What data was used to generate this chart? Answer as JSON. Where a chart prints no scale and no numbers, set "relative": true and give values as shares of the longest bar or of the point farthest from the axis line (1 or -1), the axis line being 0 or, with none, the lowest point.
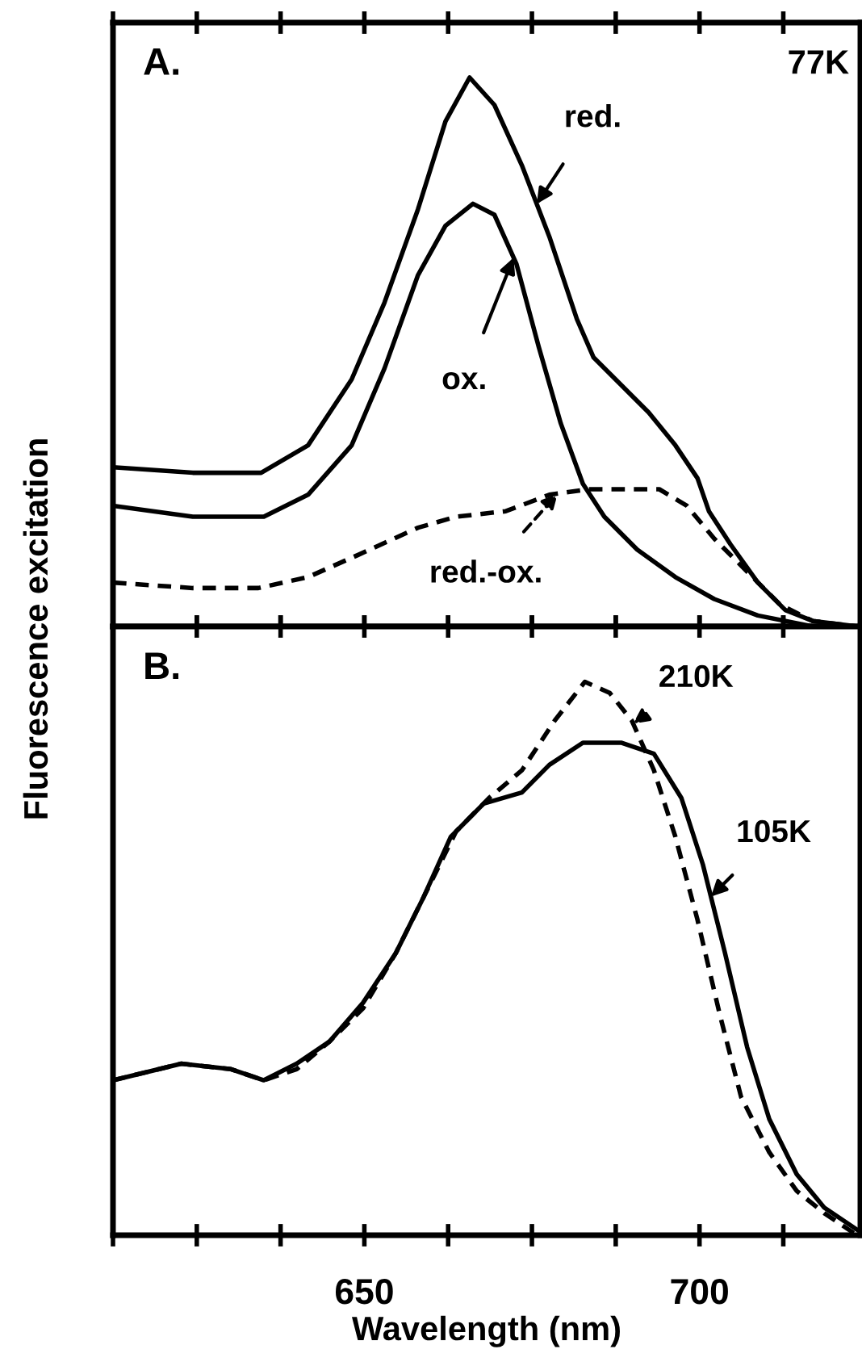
{
  "chart_data": [
    {
      "type": "line",
      "relative": true,
      "ylabel": "Fluorescence excitation",
      "tick_labels": false,
      "xlim": [
        612.5,
        724
      ],
      "xticks": [
        {
          "value": 612.5,
          "label": null
        },
        {
          "value": 625,
          "label": null
        },
        {
          "value": 637.5,
          "label": null
        },
        650,
        {
          "value": 662.5,
          "label": null
        },
        {
          "value": 675,
          "label": null
        },
        {
          "value": 687.5,
          "label": null
        },
        700,
        {
          "value": 712.5,
          "label": null
        }
      ],
      "series": [
        {
          "name": "red.",
          "color": "#000000",
          "line_style": "solid",
          "x": [
            612.5,
            624.4,
            634.6,
            641.6,
            648.1,
            653.0,
            658.0,
            662.1,
            665.7,
            669.4,
            673.5,
            677.6,
            681.7,
            684.2,
            688.3,
            692.4,
            696.4,
            699.7,
            701.4,
            704.6,
            708.7,
            712.8,
            716.9,
            723.5
          ],
          "values": [
            0.29,
            0.28,
            0.28,
            0.33,
            0.45,
            0.59,
            0.76,
            0.92,
            1.0,
            0.95,
            0.84,
            0.71,
            0.56,
            0.49,
            0.44,
            0.39,
            0.33,
            0.27,
            0.21,
            0.15,
            0.08,
            0.03,
            0.01,
            0
          ]
        },
        {
          "name": "ox.",
          "color": "#000000",
          "line_style": "solid",
          "x": [
            612.5,
            624.4,
            635.0,
            641.6,
            648.1,
            653.0,
            658.0,
            662.1,
            666.2,
            669.4,
            672.7,
            676.0,
            679.3,
            682.6,
            685.8,
            690.7,
            696.4,
            702.2,
            708.7,
            716.9,
            723.5
          ],
          "values": [
            0.22,
            0.2,
            0.2,
            0.24,
            0.33,
            0.47,
            0.64,
            0.73,
            0.77,
            0.75,
            0.66,
            0.51,
            0.37,
            0.26,
            0.2,
            0.14,
            0.09,
            0.05,
            0.02,
            0.0,
            0
          ]
        },
        {
          "name": "red.-ox.",
          "color": "#000000",
          "line_style": "dashed",
          "x": [
            612.5,
            624.4,
            634.2,
            641.6,
            649.0,
            658.0,
            663.7,
            671.1,
            677.6,
            683.4,
            689.1,
            694.0,
            698.1,
            702.2,
            707.1,
            712.0,
            716.9,
            723.5
          ],
          "values": [
            0.08,
            0.07,
            0.07,
            0.09,
            0.13,
            0.18,
            0.2,
            0.21,
            0.24,
            0.25,
            0.25,
            0.25,
            0.22,
            0.16,
            0.1,
            0.04,
            0.01,
            0
          ]
        }
      ],
      "annotations": [
        "A.",
        "77K"
      ]
    },
    {
      "type": "line",
      "relative": true,
      "xlabel": "Wavelength (nm)",
      "tick_labels": "x",
      "xlim": [
        612.5,
        724
      ],
      "xticks": [
        {
          "value": 612.5,
          "label": null
        },
        {
          "value": 625,
          "label": null
        },
        {
          "value": 637.5,
          "label": null
        },
        650,
        {
          "value": 662.5,
          "label": null
        },
        {
          "value": 675,
          "label": null
        },
        {
          "value": 687.5,
          "label": null
        },
        700,
        {
          "value": 712.5,
          "label": null
        }
      ],
      "series": [
        {
          "name": "105K",
          "color": "#000000",
          "line_style": "solid",
          "x": [
            612.5,
            622.7,
            630.1,
            635.0,
            639.9,
            644.8,
            649.8,
            654.7,
            658.8,
            662.9,
            667.8,
            673.5,
            677.6,
            682.6,
            688.3,
            693.2,
            697.3,
            700.5,
            703.8,
            707.1,
            710.4,
            714.5,
            718.6,
            723.5
          ],
          "values": [
            0.28,
            0.31,
            0.3,
            0.28,
            0.31,
            0.35,
            0.42,
            0.51,
            0.61,
            0.72,
            0.78,
            0.8,
            0.85,
            0.89,
            0.89,
            0.87,
            0.79,
            0.67,
            0.51,
            0.34,
            0.21,
            0.11,
            0.05,
            0.01
          ]
        },
        {
          "name": "210K",
          "color": "#000000",
          "line_style": "dashed",
          "x": [
            612.5,
            622.7,
            630.1,
            635.0,
            639.9,
            644.8,
            649.8,
            654.7,
            658.8,
            663.7,
            668.6,
            673.5,
            678.4,
            682.9,
            686.6,
            689.9,
            693.2,
            696.4,
            699.7,
            703.0,
            706.2,
            710.4,
            714.5,
            718.6,
            723.5
          ],
          "values": [
            0.28,
            0.31,
            0.3,
            0.28,
            0.3,
            0.35,
            0.41,
            0.51,
            0.61,
            0.73,
            0.79,
            0.84,
            0.93,
            1.0,
            0.98,
            0.93,
            0.84,
            0.72,
            0.57,
            0.4,
            0.25,
            0.15,
            0.08,
            0.04,
            0.0
          ]
        }
      ],
      "annotations": [
        "B."
      ]
    }
  ]
}
